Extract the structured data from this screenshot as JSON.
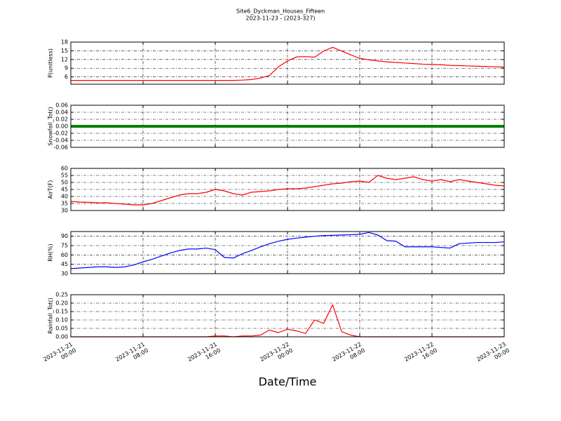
{
  "title": "Site6_Dyckman_Houses_Fifteen",
  "subtitle": "2023-11-23 - (2023-327)",
  "xlabel": "Date/Time",
  "xlim": [
    "2023-11-21 00:00",
    "2023-11-23 00:00"
  ],
  "xticks": [
    {
      "value": "2023-11-21 00:00",
      "label": "2023-11-21\n00:00"
    },
    {
      "value": "2023-11-21 08:00",
      "label": "2023-11-21\n08:00"
    },
    {
      "value": "2023-11-21 16:00",
      "label": "2023-11-21\n16:00"
    },
    {
      "value": "2023-11-22 00:00",
      "label": "2023-11-22\n00:00"
    },
    {
      "value": "2023-11-22 08:00",
      "label": "2023-11-22\n08:00"
    },
    {
      "value": "2023-11-22 16:00",
      "label": "2023-11-22\n16:00"
    },
    {
      "value": "2023-11-23 00:00",
      "label": "2023-11-23\n00:00"
    }
  ],
  "grid": true,
  "x": [
    "2023-11-21 00:00",
    "2023-11-21 01:00",
    "2023-11-21 02:00",
    "2023-11-21 03:00",
    "2023-11-21 04:00",
    "2023-11-21 05:00",
    "2023-11-21 06:00",
    "2023-11-21 07:00",
    "2023-11-21 08:00",
    "2023-11-21 09:00",
    "2023-11-21 10:00",
    "2023-11-21 11:00",
    "2023-11-21 12:00",
    "2023-11-21 13:00",
    "2023-11-21 14:00",
    "2023-11-21 15:00",
    "2023-11-21 16:00",
    "2023-11-21 17:00",
    "2023-11-21 18:00",
    "2023-11-21 19:00",
    "2023-11-21 20:00",
    "2023-11-21 21:00",
    "2023-11-21 22:00",
    "2023-11-21 23:00",
    "2023-11-22 00:00",
    "2023-11-22 01:00",
    "2023-11-22 02:00",
    "2023-11-22 03:00",
    "2023-11-22 04:00",
    "2023-11-22 05:00",
    "2023-11-22 06:00",
    "2023-11-22 07:00",
    "2023-11-22 08:00",
    "2023-11-22 09:00",
    "2023-11-22 10:00",
    "2023-11-22 11:00",
    "2023-11-22 12:00",
    "2023-11-22 13:00",
    "2023-11-22 14:00",
    "2023-11-22 15:00",
    "2023-11-22 16:00",
    "2023-11-22 17:00",
    "2023-11-22 18:00",
    "2023-11-22 19:00",
    "2023-11-22 20:00",
    "2023-11-22 21:00",
    "2023-11-22 22:00",
    "2023-11-22 23:00",
    "2023-11-23 00:00"
  ],
  "chart_data": [
    {
      "type": "line",
      "ylabel": "P(unitless)",
      "ylim": [
        3.5,
        18
      ],
      "yticks": [
        6,
        9,
        12,
        15,
        18
      ],
      "series": [
        {
          "color": "#ff0000",
          "values": [
            4.8,
            4.8,
            4.8,
            4.8,
            4.8,
            4.8,
            4.8,
            4.8,
            4.8,
            4.8,
            4.8,
            4.8,
            4.8,
            4.8,
            4.8,
            4.8,
            4.8,
            4.8,
            4.8,
            4.9,
            5.1,
            5.6,
            6.5,
            9.5,
            11.5,
            12.9,
            13.0,
            12.8,
            14.9,
            16.2,
            14.9,
            13.6,
            12.4,
            11.9,
            11.5,
            11.2,
            11.0,
            10.8,
            10.6,
            10.4,
            10.3,
            10.2,
            10.0,
            9.9,
            9.8,
            9.7,
            9.6,
            9.5,
            9.4
          ]
        }
      ]
    },
    {
      "type": "line",
      "ylabel": "Snowfall_Tot()",
      "ylim": [
        -0.06,
        0.06
      ],
      "yticks": [
        -0.06,
        -0.04,
        -0.02,
        {
          "value": 0,
          "label": "0.00"
        },
        0.02,
        0.04,
        0.06
      ],
      "series": [
        {
          "color": "#008000",
          "values": [
            0,
            0,
            0,
            0,
            0,
            0,
            0,
            0,
            0,
            0,
            0,
            0,
            0,
            0,
            0,
            0,
            0,
            0,
            0,
            0,
            0,
            0,
            0,
            0,
            0,
            0,
            0,
            0,
            0,
            0,
            0,
            0,
            0,
            0,
            0,
            0,
            0,
            0,
            0,
            0,
            0,
            0,
            0,
            0,
            0,
            0,
            0,
            0,
            0
          ]
        }
      ]
    },
    {
      "type": "line",
      "ylabel": "AirT(F)",
      "ylim": [
        30,
        60
      ],
      "yticks": [
        30,
        35,
        40,
        45,
        50,
        55,
        60
      ],
      "series": [
        {
          "color": "#ff0000",
          "values": [
            36.5,
            36,
            35.8,
            35.5,
            35.5,
            35,
            34.5,
            34,
            34,
            35,
            37,
            39,
            41,
            42,
            42,
            43,
            45,
            44,
            42,
            41,
            43,
            43.5,
            44,
            45,
            45.5,
            45.5,
            46,
            47,
            48,
            49,
            49.5,
            50.5,
            51,
            50,
            55,
            53,
            52,
            53,
            54,
            52,
            51,
            52,
            50.5,
            52,
            51,
            50,
            49,
            48,
            47.5
          ]
        }
      ]
    },
    {
      "type": "line",
      "ylabel": "RH(%)",
      "ylim": [
        30,
        97.5
      ],
      "yticks": [
        30,
        45,
        60,
        75,
        90
      ],
      "series": [
        {
          "color": "#0000ff",
          "values": [
            38,
            39,
            40,
            41,
            41,
            40,
            41,
            44,
            49,
            53,
            58,
            63,
            67,
            69.5,
            69.5,
            71,
            68.5,
            56,
            55,
            62,
            67,
            73,
            78,
            82,
            85,
            87,
            88.5,
            90,
            91,
            91.5,
            92,
            92.5,
            93,
            96,
            92,
            83,
            82,
            73,
            73,
            73,
            73,
            72,
            71,
            78,
            79,
            80,
            80,
            80,
            81
          ]
        }
      ]
    },
    {
      "type": "line",
      "ylabel": "Rainfall_Tot()",
      "ylim": [
        0,
        0.25
      ],
      "yticks": [
        {
          "value": 0,
          "label": "0.00"
        },
        0.05,
        {
          "value": 0.1,
          "label": "0.10"
        },
        0.15,
        {
          "value": 0.2,
          "label": "0.20"
        },
        0.25
      ],
      "series": [
        {
          "color": "#ff0000",
          "values": [
            0,
            0,
            0,
            0,
            0,
            0,
            0,
            0,
            0,
            0,
            0,
            0,
            0,
            0,
            0,
            0,
            0.005,
            0.005,
            0,
            0.005,
            0.005,
            0.01,
            0.04,
            0.025,
            0.045,
            0.035,
            0.02,
            0.1,
            0.08,
            0.19,
            0.03,
            0.01,
            0,
            0,
            0,
            0,
            0,
            0,
            0,
            0,
            0,
            0,
            0,
            0,
            0,
            0,
            0,
            0,
            0
          ]
        }
      ]
    }
  ]
}
